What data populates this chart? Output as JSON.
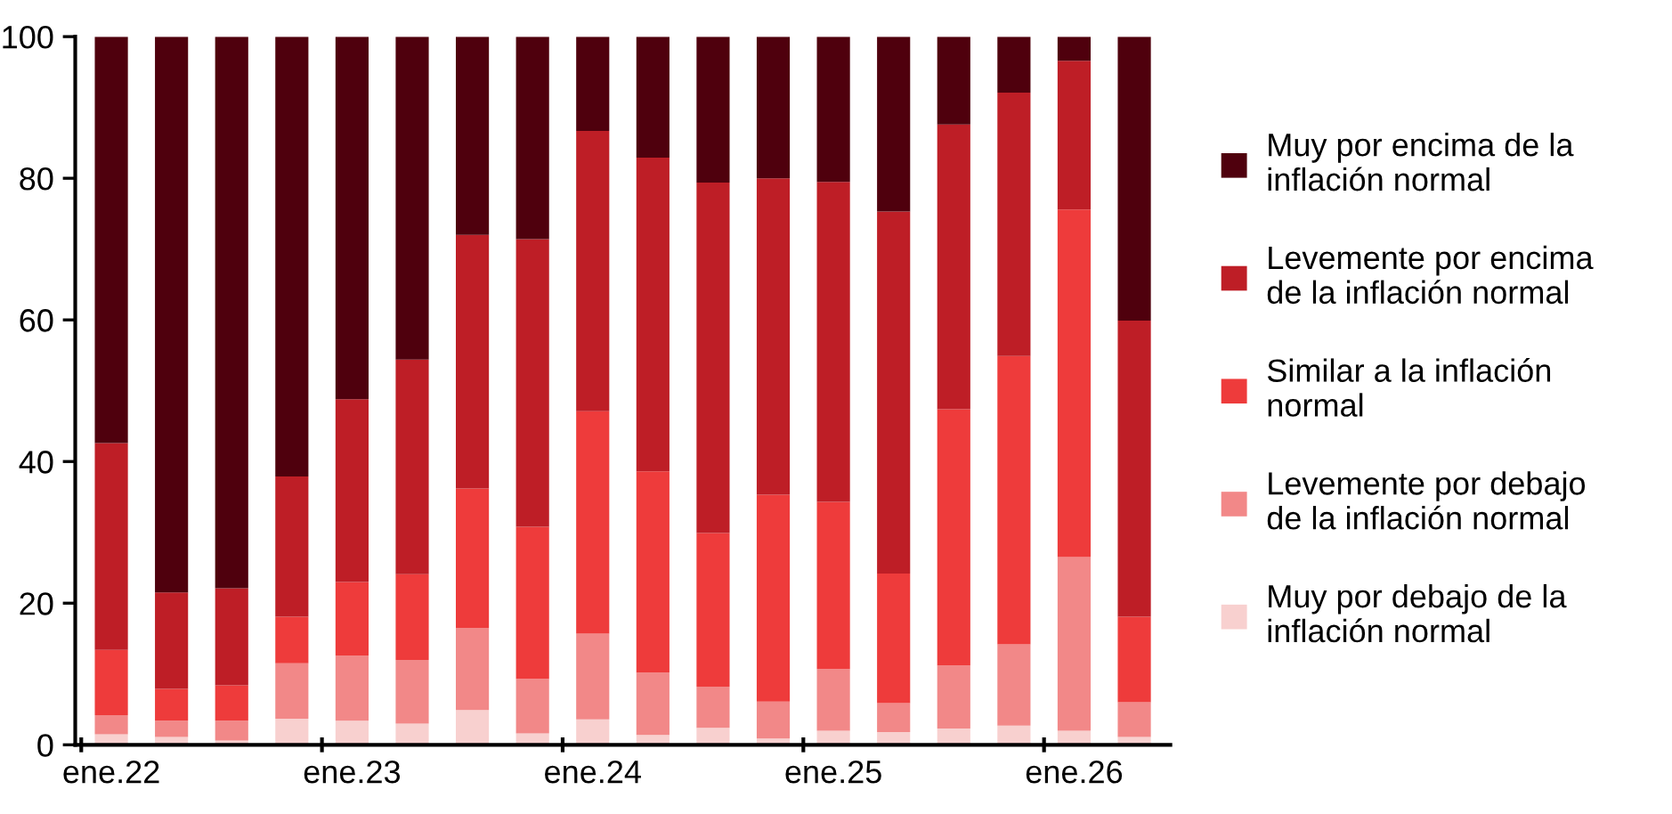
{
  "chart_data": {
    "type": "bar",
    "stacked": true,
    "categories": [
      "ene.22",
      null,
      null,
      null,
      "ene.23",
      null,
      null,
      null,
      "ene.24",
      null,
      null,
      null,
      "ene.25",
      null,
      null,
      null,
      "ene.26",
      null
    ],
    "ylim": [
      0,
      100
    ],
    "yticks": [
      0,
      20,
      40,
      60,
      80,
      100
    ],
    "grid": false,
    "legend": "right",
    "series": [
      {
        "name": "Muy por debajo de la\ninflación normal",
        "color": "#f8d0cf",
        "values": [
          1.5,
          1.1,
          0.6,
          3.7,
          3.4,
          3.0,
          4.9,
          1.6,
          3.6,
          1.4,
          2.4,
          0.9,
          2.0,
          1.8,
          2.3,
          2.7,
          2.0,
          1.1
        ]
      },
      {
        "name": "Levemente por debajo\nde la inflación normal",
        "color": "#f28888",
        "values": [
          2.7,
          2.3,
          2.8,
          7.8,
          9.2,
          9.0,
          11.6,
          7.7,
          12.1,
          8.8,
          5.8,
          5.2,
          8.7,
          4.1,
          8.9,
          11.5,
          24.5,
          4.9
        ]
      },
      {
        "name": "Similar a la inflación\nnormal",
        "color": "#ee3b3b",
        "values": [
          9.2,
          4.5,
          5.0,
          6.6,
          10.4,
          12.1,
          19.7,
          21.5,
          31.4,
          28.4,
          21.7,
          29.2,
          23.6,
          18.3,
          36.2,
          40.7,
          49.1,
          12.1
        ]
      },
      {
        "name": "Levemente por encima\nde la inflación normal",
        "color": "#be1e26",
        "values": [
          29.2,
          13.6,
          13.7,
          19.8,
          25.8,
          30.3,
          35.8,
          40.6,
          39.6,
          44.3,
          49.5,
          44.7,
          45.2,
          51.1,
          40.2,
          37.2,
          21.0,
          41.8
        ]
      },
      {
        "name": "Muy por encima de la\ninflación normal",
        "color": "#4f000d",
        "values": [
          57.4,
          78.5,
          77.9,
          62.1,
          51.2,
          45.6,
          28.0,
          28.6,
          13.3,
          17.1,
          20.6,
          20.0,
          20.5,
          24.7,
          12.4,
          7.9,
          3.4,
          40.1
        ]
      }
    ]
  }
}
